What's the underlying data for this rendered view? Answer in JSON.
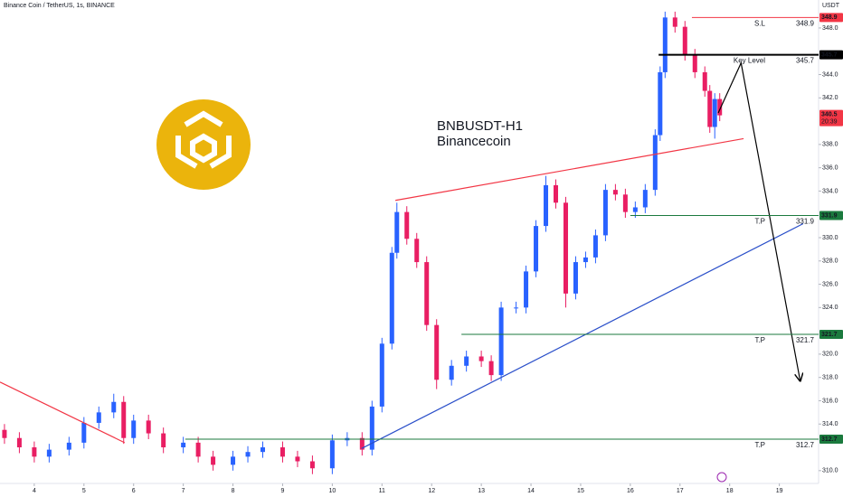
{
  "header": {
    "symbol": "Binance Coin / TetherUS, 1s, BINANCE",
    "currency": "USDT"
  },
  "chart_data": {
    "type": "candlestick",
    "title": "BNBUSDT-H1",
    "subtitle": "Binancecoin",
    "up_color": "#2962ff",
    "down_color": "#e91e63",
    "x": [
      3.4,
      3.7,
      4.0,
      4.3,
      4.7,
      5.0,
      5.3,
      5.6,
      5.8,
      6.0,
      6.3,
      6.6,
      7.0,
      7.3,
      7.6,
      8.0,
      8.3,
      8.6,
      9.0,
      9.3,
      9.6,
      10.0,
      10.3,
      10.6,
      10.8,
      11.0,
      11.2,
      11.3,
      11.5,
      11.7,
      11.9,
      12.1,
      12.4,
      12.7,
      13.0,
      13.2,
      13.4,
      13.7,
      13.9,
      14.1,
      14.3,
      14.5,
      14.7,
      14.9,
      15.1,
      15.3,
      15.5,
      15.7,
      15.9,
      16.1,
      16.3,
      16.5,
      16.6,
      16.7,
      16.9,
      17.1,
      17.3,
      17.5,
      17.6,
      17.7,
      17.8
    ],
    "open": [
      313.5,
      312.8,
      312.0,
      311.2,
      311.8,
      312.4,
      314.1,
      315.0,
      315.9,
      312.8,
      314.3,
      313.2,
      312.0,
      312.4,
      311.2,
      310.5,
      311.2,
      311.6,
      312.0,
      311.2,
      310.8,
      310.2,
      312.6,
      312.8,
      311.8,
      315.5,
      320.9,
      328.7,
      332.2,
      329.9,
      327.9,
      322.5,
      317.8,
      319.0,
      319.8,
      319.4,
      318.2,
      324.0,
      324.0,
      327.1,
      331.0,
      334.5,
      333.0,
      325.2,
      327.9,
      328.3,
      330.2,
      334.1,
      333.7,
      332.2,
      332.6,
      334.1,
      338.8,
      344.2,
      348.9,
      348.1,
      345.7,
      344.2,
      342.6,
      339.5,
      341.9
    ],
    "high": [
      314.0,
      313.3,
      312.5,
      312.3,
      312.9,
      314.6,
      315.5,
      316.6,
      316.4,
      314.8,
      314.8,
      313.7,
      312.9,
      312.9,
      311.7,
      311.7,
      312.1,
      312.5,
      312.5,
      311.7,
      311.3,
      313.1,
      313.3,
      313.3,
      316.0,
      321.4,
      329.2,
      333.0,
      332.7,
      330.4,
      328.4,
      323.0,
      319.5,
      320.3,
      320.3,
      319.9,
      324.5,
      324.5,
      327.6,
      331.5,
      335.3,
      335.0,
      333.5,
      328.4,
      328.8,
      330.7,
      334.6,
      334.6,
      334.2,
      333.1,
      334.6,
      339.3,
      344.7,
      349.4,
      349.4,
      348.6,
      346.2,
      344.7,
      343.1,
      342.4,
      342.4
    ],
    "low": [
      312.3,
      311.5,
      310.7,
      310.7,
      311.3,
      311.9,
      313.6,
      314.5,
      312.3,
      312.3,
      312.7,
      311.5,
      311.5,
      310.7,
      310.0,
      310.0,
      310.7,
      311.1,
      310.7,
      310.3,
      309.7,
      309.7,
      312.1,
      311.3,
      311.3,
      315.0,
      320.4,
      328.2,
      329.4,
      327.4,
      322.0,
      317.0,
      317.3,
      318.5,
      318.9,
      317.7,
      317.7,
      323.5,
      323.5,
      326.6,
      330.5,
      332.5,
      324.0,
      324.7,
      327.4,
      327.8,
      329.7,
      333.2,
      331.7,
      331.7,
      332.1,
      333.6,
      338.3,
      343.7,
      347.6,
      345.2,
      343.7,
      342.1,
      339.0,
      338.5,
      340.0
    ],
    "close": [
      312.8,
      312.0,
      311.2,
      311.8,
      312.4,
      314.1,
      315.0,
      315.9,
      312.8,
      314.3,
      313.2,
      312.0,
      312.4,
      311.2,
      310.5,
      311.2,
      311.6,
      312.0,
      311.2,
      310.8,
      310.2,
      312.6,
      312.8,
      311.8,
      315.5,
      320.9,
      328.7,
      332.2,
      329.9,
      327.9,
      322.5,
      317.8,
      319.0,
      319.8,
      319.4,
      318.2,
      324.0,
      324.0,
      327.1,
      331.0,
      334.5,
      333.0,
      325.2,
      327.9,
      328.3,
      330.2,
      334.1,
      333.7,
      332.2,
      332.6,
      334.1,
      338.8,
      344.2,
      348.9,
      348.1,
      345.7,
      344.2,
      342.6,
      339.5,
      341.9,
      340.5
    ],
    "xlim": [
      3.31,
      19.79
    ],
    "ylim": [
      308.9,
      350.4
    ],
    "xticks": [
      4,
      5,
      6,
      7,
      8,
      9,
      10,
      11,
      12,
      13,
      14,
      15,
      16,
      17,
      18,
      19
    ],
    "yticks": [
      {
        "value": 310,
        "label": "310.0"
      },
      {
        "value": 314,
        "label": "314.0"
      },
      {
        "value": 316,
        "label": "316.0"
      },
      {
        "value": 318,
        "label": "318.0"
      },
      {
        "value": 320,
        "label": "320.0"
      },
      {
        "value": 324,
        "label": "324.0"
      },
      {
        "value": 326,
        "label": "326.0"
      },
      {
        "value": 328,
        "label": "328.0"
      },
      {
        "value": 330,
        "label": "330.0"
      },
      {
        "value": 334,
        "label": "334.0"
      },
      {
        "value": 336,
        "label": "336.0"
      },
      {
        "value": 338,
        "label": "338.0"
      },
      {
        "value": 342,
        "label": "342.0"
      },
      {
        "value": 344,
        "label": "344.0"
      },
      {
        "value": 348,
        "label": "348.0"
      }
    ],
    "levels": [
      {
        "label": "S.L",
        "value": 348.9,
        "color": "#f23645",
        "start": 17.24,
        "line_width": 1
      },
      {
        "label": "Key Level",
        "value": 345.7,
        "color": "#000000",
        "start": 16.57,
        "line_width": 2
      },
      {
        "label": "T.P",
        "value": 331.9,
        "color": "#1b7a3e",
        "start": 16.0,
        "line_width": 1
      },
      {
        "label": "T.P",
        "value": 321.7,
        "color": "#1b7a3e",
        "start": 12.6,
        "line_width": 1
      },
      {
        "label": "T.P",
        "value": 312.7,
        "color": "#1b7a3e",
        "start": 7.04,
        "line_width": 1
      }
    ],
    "last_price": 340.5,
    "last_price_color": "#f23645",
    "countdown": "20:39",
    "trendlines": [
      {
        "color": "#f23645",
        "x": [
          3.31,
          5.82
        ],
        "y": [
          317.6,
          312.4
        ],
        "arrow": false
      },
      {
        "color": "#2a4fc9",
        "x": [
          10.59,
          19.48
        ],
        "y": [
          311.9,
          331.2
        ],
        "arrow": false
      },
      {
        "color": "#f23645",
        "x": [
          11.27,
          18.28
        ],
        "y": [
          333.2,
          338.5
        ],
        "arrow": false
      },
      {
        "color": "#000000",
        "x": [
          17.77,
          18.23,
          19.42
        ],
        "y": [
          340.7,
          345.0,
          317.7
        ],
        "arrow": true
      }
    ]
  }
}
